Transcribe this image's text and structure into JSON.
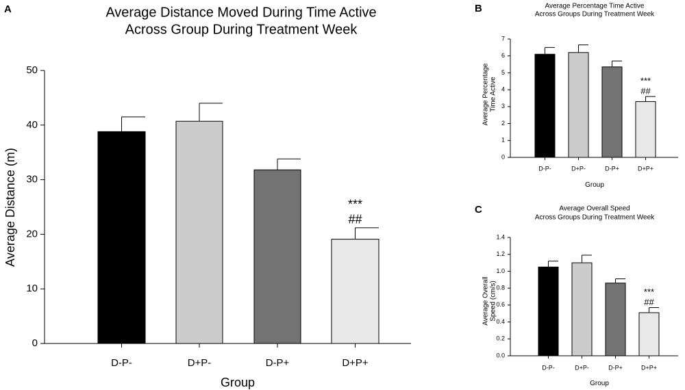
{
  "chart_data": [
    {
      "panel": "A",
      "type": "bar",
      "title_lines": [
        "Average Distance Moved During Time Active",
        "Across Group During Treatment Week"
      ],
      "xlabel": "Group",
      "ylabel": "Average Distance (m)",
      "ylim": [
        0,
        50
      ],
      "yticks": [
        0,
        10,
        20,
        30,
        40,
        50
      ],
      "categories": [
        "D-P-",
        "D+P-",
        "D-P+",
        "D+P+"
      ],
      "values": [
        38.8,
        40.7,
        31.8,
        19.1
      ],
      "errors": [
        2.7,
        3.3,
        2.0,
        2.1
      ],
      "colors": [
        "#000000",
        "#cccccc",
        "#737373",
        "#e8e8e8"
      ],
      "annotations": [
        {
          "category": "D+P+",
          "lines": [
            "***",
            "##"
          ]
        }
      ]
    },
    {
      "panel": "B",
      "type": "bar",
      "title_lines": [
        "Average Percentage Time Active",
        "Across Groups During Treatment Week"
      ],
      "xlabel": "Group",
      "ylabel_lines": [
        "Average Percentage",
        "Time Active"
      ],
      "ylim": [
        0,
        7
      ],
      "yticks": [
        0,
        1,
        2,
        3,
        4,
        5,
        6,
        7
      ],
      "categories": [
        "D-P-",
        "D+P-",
        "D-P+",
        "D+P+"
      ],
      "values": [
        6.1,
        6.2,
        5.35,
        3.3
      ],
      "errors": [
        0.4,
        0.45,
        0.35,
        0.3
      ],
      "colors": [
        "#000000",
        "#cccccc",
        "#737373",
        "#e8e8e8"
      ],
      "annotations": [
        {
          "category": "D+P+",
          "lines": [
            "***",
            "##"
          ]
        }
      ]
    },
    {
      "panel": "C",
      "type": "bar",
      "title_lines": [
        "Average Overall Speed",
        "Across Groups During Treatment Week"
      ],
      "xlabel": "Group",
      "ylabel_lines": [
        "Average Overall",
        "Speed (cm/s)"
      ],
      "ylim": [
        0,
        1.4
      ],
      "yticks": [
        "0.0",
        "0.2",
        "0.4",
        "0.6",
        "0.8",
        "1.0",
        "1.2",
        "1.4"
      ],
      "categories": [
        "D-P-",
        "D+P-",
        "D-P+",
        "D+P+"
      ],
      "values": [
        1.05,
        1.1,
        0.86,
        0.51
      ],
      "errors": [
        0.07,
        0.09,
        0.05,
        0.06
      ],
      "colors": [
        "#000000",
        "#cccccc",
        "#737373",
        "#e8e8e8"
      ],
      "annotations": [
        {
          "category": "D+P+",
          "lines": [
            "***",
            "##"
          ]
        }
      ]
    }
  ]
}
